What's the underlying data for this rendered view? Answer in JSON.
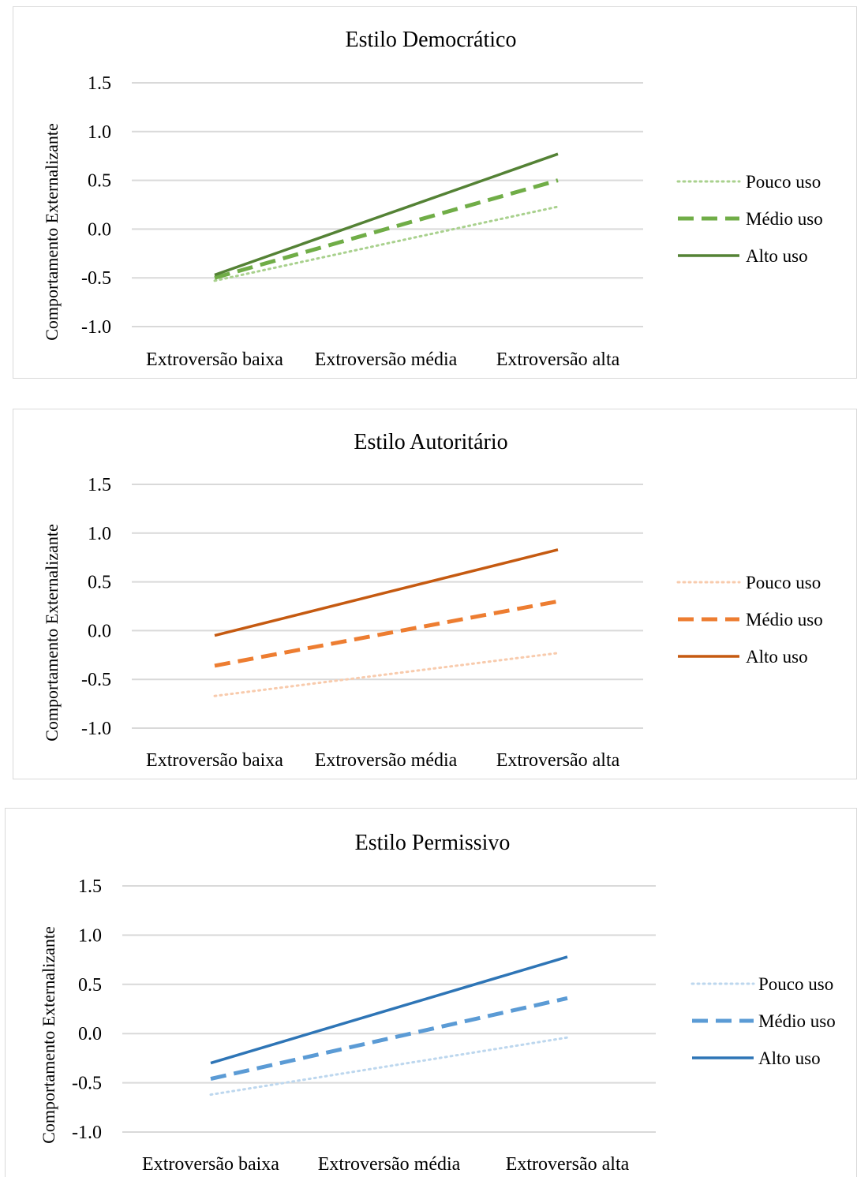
{
  "chart_data": [
    {
      "type": "line",
      "title": "Estilo Democrático",
      "ylabel": "Comportamento  Externalizante",
      "xlabel": "",
      "categories": [
        "Extroversão baixa",
        "Extroversão média",
        "Extroversão alta"
      ],
      "ylim": [
        -1.0,
        1.5
      ],
      "yticks": [
        "1.5",
        "1.0",
        "0.5",
        "0.0",
        "-0.5",
        "-1.0"
      ],
      "grid": true,
      "legend": "right",
      "series": [
        {
          "name": "Pouco uso",
          "values": [
            -0.53,
            -0.15,
            0.23
          ],
          "color": "#a9d18e",
          "style": "dotted"
        },
        {
          "name": "Médio uso",
          "values": [
            -0.5,
            0.0,
            0.5
          ],
          "color": "#70ad47",
          "style": "dashed"
        },
        {
          "name": "Alto uso",
          "values": [
            -0.47,
            0.15,
            0.77
          ],
          "color": "#548235",
          "style": "solid"
        }
      ]
    },
    {
      "type": "line",
      "title": "Estilo Autoritário",
      "ylabel": "Comportamento  Externalizante",
      "xlabel": "",
      "categories": [
        "Extroversão baixa",
        "Extroversão média",
        "Extroversão alta"
      ],
      "ylim": [
        -1.0,
        1.5
      ],
      "yticks": [
        "1.5",
        "1.0",
        "0.5",
        "0.0",
        "-0.5",
        "-1.0"
      ],
      "grid": true,
      "legend": "right",
      "series": [
        {
          "name": "Pouco uso",
          "values": [
            -0.67,
            -0.45,
            -0.23
          ],
          "color": "#f8cbad",
          "style": "dotted"
        },
        {
          "name": "Médio uso",
          "values": [
            -0.36,
            -0.03,
            0.3
          ],
          "color": "#ed7d31",
          "style": "dashed"
        },
        {
          "name": "Alto uso",
          "values": [
            -0.05,
            0.39,
            0.83
          ],
          "color": "#c55a11",
          "style": "solid"
        }
      ]
    },
    {
      "type": "line",
      "title": "Estilo Permissivo",
      "ylabel": "Comportamento Externalizante",
      "xlabel": "",
      "categories": [
        "Extroversão baixa",
        "Extroversão média",
        "Extroversão alta"
      ],
      "ylim": [
        -1.0,
        1.5
      ],
      "yticks": [
        "1.5",
        "1.0",
        "0.5",
        "0.0",
        "-0.5",
        "-1.0"
      ],
      "grid": true,
      "legend": "right",
      "series": [
        {
          "name": "Pouco uso",
          "values": [
            -0.62,
            -0.33,
            -0.04
          ],
          "color": "#bdd7ee",
          "style": "dotted"
        },
        {
          "name": "Médio uso",
          "values": [
            -0.46,
            -0.05,
            0.36
          ],
          "color": "#5b9bd5",
          "style": "dashed"
        },
        {
          "name": "Alto uso",
          "values": [
            -0.3,
            0.24,
            0.78
          ],
          "color": "#2e75b6",
          "style": "solid"
        }
      ]
    }
  ]
}
